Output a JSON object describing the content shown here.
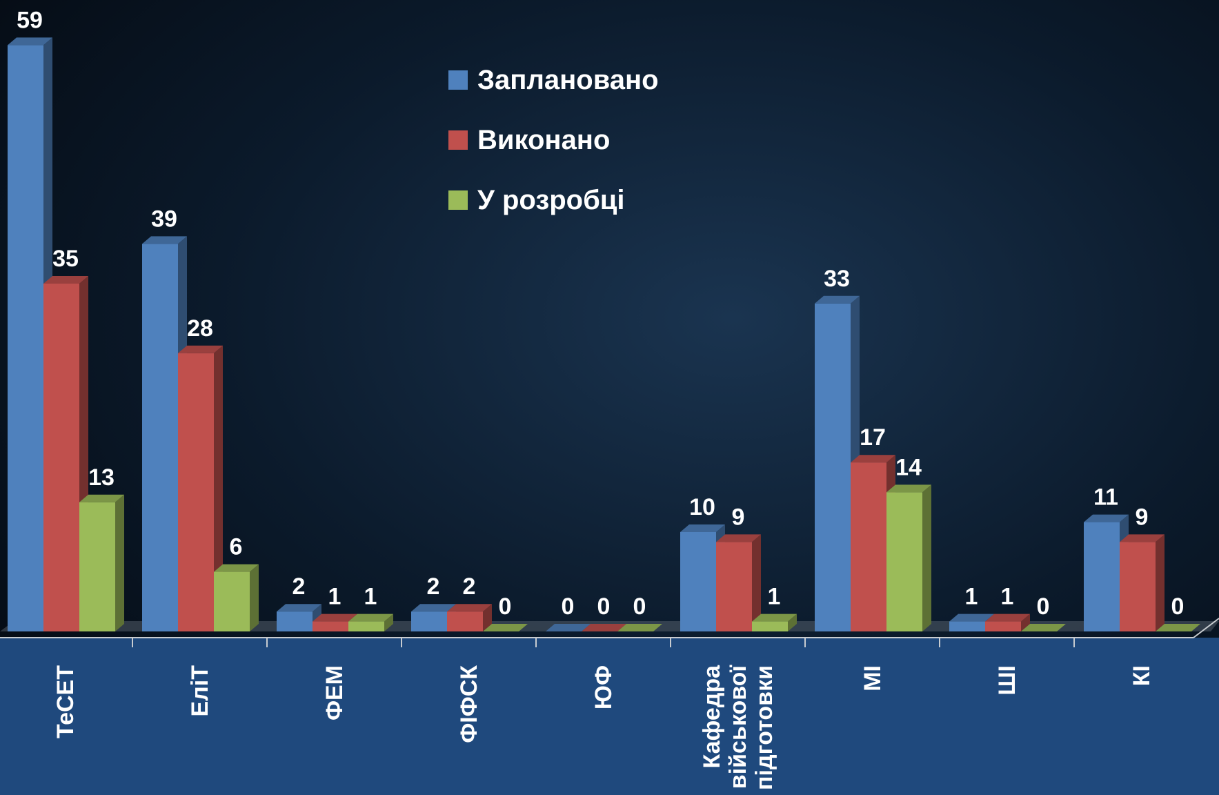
{
  "chart_data": {
    "type": "bar3d",
    "categories": [
      "ТеСЕТ",
      "ЕліТ",
      "ФЕМ",
      "ФІФСК",
      "ЮФ",
      "Кафедра військової підготовки",
      "МІ",
      "ШІ",
      "КІ"
    ],
    "series": [
      {
        "name": "Заплановано",
        "color": "#4f81bd",
        "values": [
          59,
          39,
          2,
          2,
          0,
          10,
          33,
          1,
          11
        ]
      },
      {
        "name": "Виконано",
        "color": "#c0504d",
        "values": [
          35,
          28,
          1,
          2,
          0,
          9,
          17,
          1,
          9
        ]
      },
      {
        "name": "У розробці",
        "color": "#9bbb59",
        "values": [
          13,
          6,
          1,
          0,
          0,
          1,
          14,
          0,
          0
        ]
      }
    ],
    "legend": "top-center"
  }
}
